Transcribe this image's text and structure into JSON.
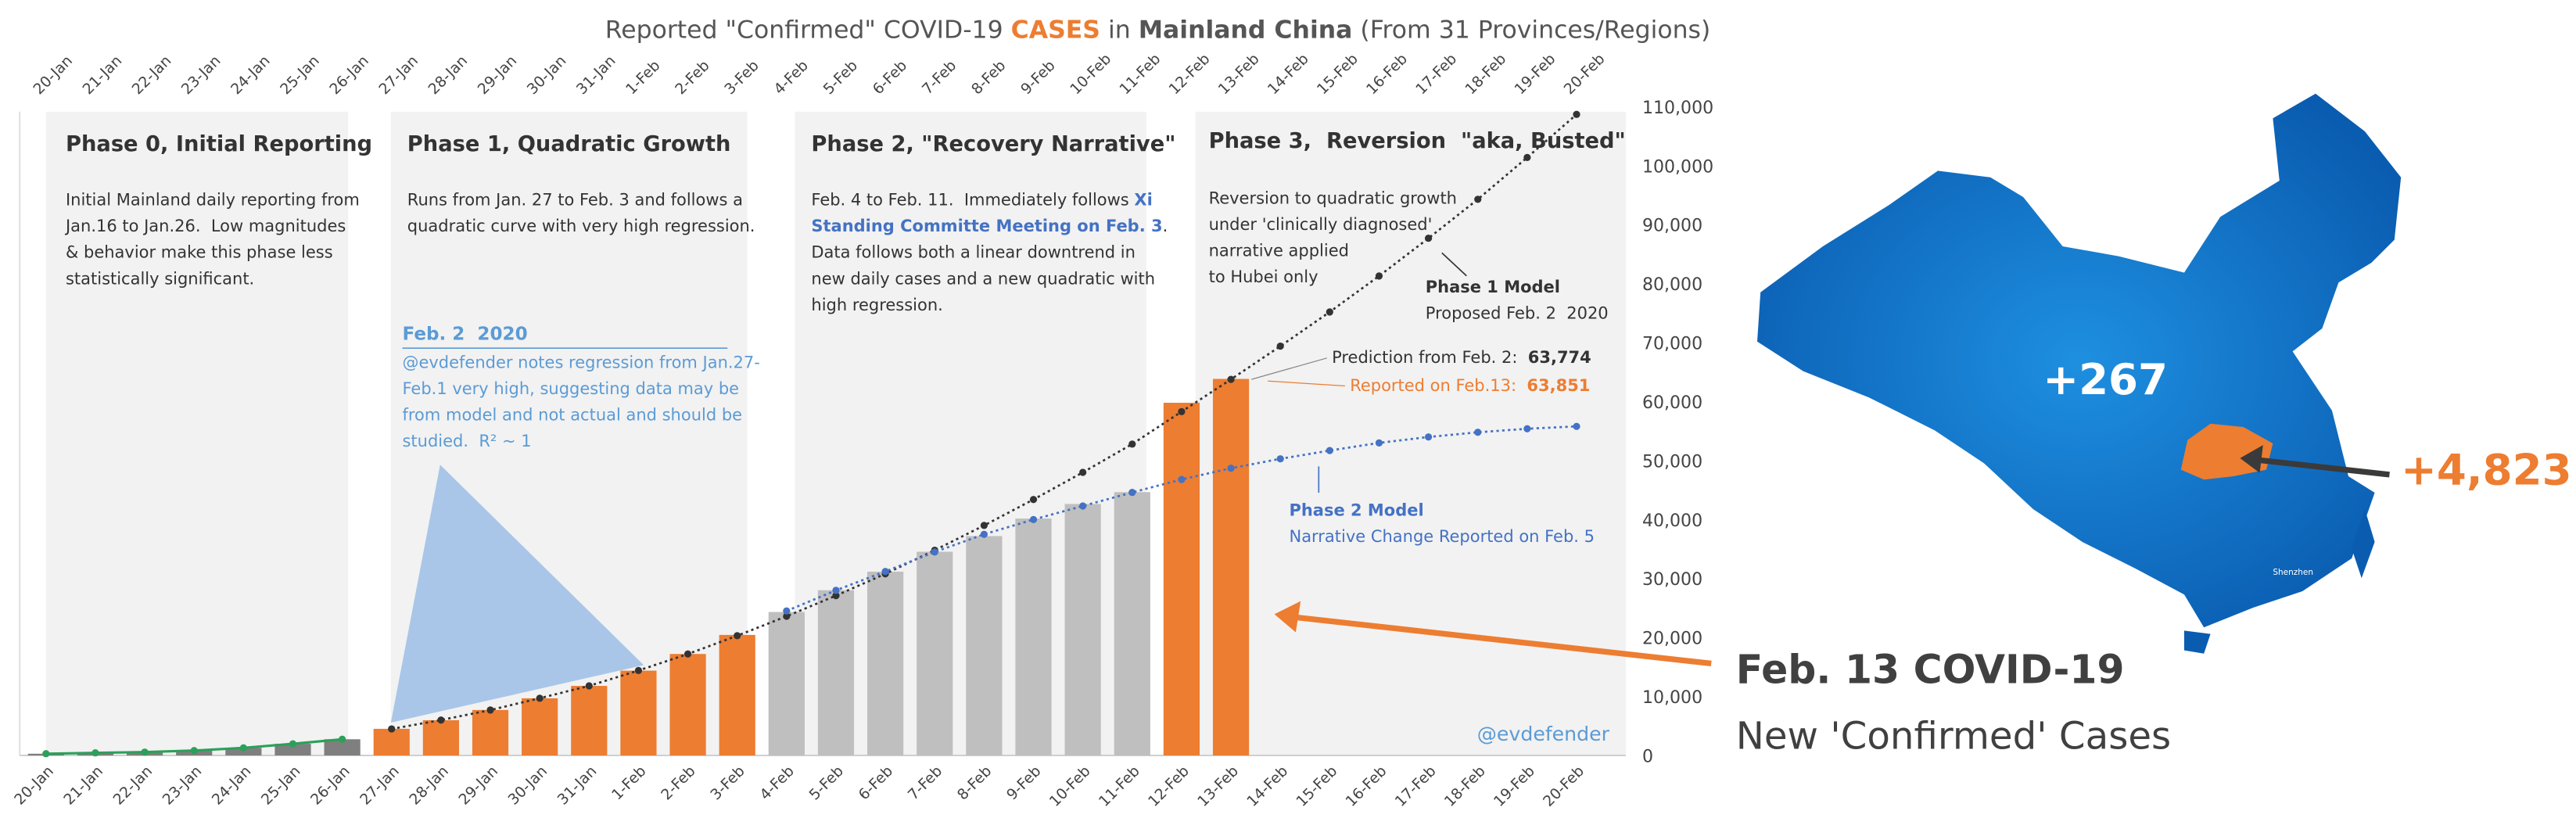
{
  "chart_data": {
    "type": "bar",
    "title": [
      "Reported \"Confirmed\" COVID-19 ",
      "CASES",
      " in ",
      "Mainland China",
      " (From 31 Provinces/Regions)"
    ],
    "categories": [
      "20-Jan",
      "21-Jan",
      "22-Jan",
      "23-Jan",
      "24-Jan",
      "25-Jan",
      "26-Jan",
      "27-Jan",
      "28-Jan",
      "29-Jan",
      "30-Jan",
      "31-Jan",
      "1-Feb",
      "2-Feb",
      "3-Feb",
      "4-Feb",
      "5-Feb",
      "6-Feb",
      "7-Feb",
      "8-Feb",
      "9-Feb",
      "10-Feb",
      "11-Feb",
      "12-Feb",
      "13-Feb",
      "14-Feb",
      "15-Feb",
      "16-Feb",
      "17-Feb",
      "18-Feb",
      "19-Feb",
      "20-Feb"
    ],
    "values": [
      291,
      440,
      571,
      830,
      1287,
      1975,
      2744,
      4515,
      5974,
      7711,
      9692,
      11791,
      14380,
      17205,
      20438,
      24324,
      28018,
      31161,
      34546,
      37198,
      40171,
      42638,
      44653,
      59804,
      63851,
      null,
      null,
      null,
      null,
      null,
      null,
      null
    ],
    "colors": [
      "#7f7f7f",
      "#7f7f7f",
      "#7f7f7f",
      "#7f7f7f",
      "#7f7f7f",
      "#7f7f7f",
      "#7f7f7f",
      "#ed7d31",
      "#ed7d31",
      "#ed7d31",
      "#ed7d31",
      "#ed7d31",
      "#ed7d31",
      "#ed7d31",
      "#ed7d31",
      "#bfbfbf",
      "#bfbfbf",
      "#bfbfbf",
      "#bfbfbf",
      "#bfbfbf",
      "#bfbfbf",
      "#bfbfbf",
      "#bfbfbf",
      "#ed7d31",
      "#ed7d31",
      null,
      null,
      null,
      null,
      null,
      null,
      null
    ],
    "lines": [
      {
        "color": "#2ca05a",
        "dotted": false,
        "values": [
          291,
          440,
          571,
          830,
          1287,
          1975,
          2744,
          null,
          null,
          null,
          null,
          null,
          null,
          null,
          null,
          null,
          null,
          null,
          null,
          null,
          null,
          null,
          null,
          null,
          null,
          null,
          null,
          null,
          null,
          null,
          null,
          null
        ]
      },
      {
        "color": "#333333",
        "dotted": true,
        "values": [
          null,
          null,
          null,
          null,
          null,
          null,
          null,
          4500,
          6000,
          7700,
          9700,
          11800,
          14400,
          17200,
          20300,
          23600,
          27100,
          30800,
          34800,
          39000,
          43400,
          48000,
          52800,
          58300,
          63774,
          69400,
          75200,
          81300,
          87700,
          94300,
          101400,
          108700
        ]
      },
      {
        "color": "#4472c4",
        "dotted": true,
        "values": [
          null,
          null,
          null,
          null,
          null,
          null,
          null,
          null,
          null,
          null,
          null,
          null,
          null,
          null,
          null,
          24500,
          28000,
          31200,
          34500,
          37500,
          40000,
          42300,
          44600,
          46800,
          48700,
          50300,
          51700,
          53000,
          54000,
          54800,
          55400,
          55800
        ]
      }
    ],
    "ylim": [
      0,
      110000
    ],
    "yticks": [
      0,
      {
        "value": 10000,
        "label": "10,000"
      },
      {
        "value": 20000,
        "label": "20,000"
      },
      {
        "value": 30000,
        "label": "30,000"
      },
      {
        "value": 40000,
        "label": "40,000"
      },
      {
        "value": 50000,
        "label": "50,000"
      },
      {
        "value": 60000,
        "label": "60,000"
      },
      {
        "value": 70000,
        "label": "70,000"
      },
      {
        "value": 80000,
        "label": "80,000"
      },
      {
        "value": 90000,
        "label": "90,000"
      },
      {
        "value": 100000,
        "label": "100,000"
      },
      {
        "value": 110000,
        "label": "110,000"
      }
    ],
    "annotations": {
      "phase0": {
        "title": "Phase 0, Initial Reporting",
        "body": [
          "Initial Mainland daily reporting from",
          "Jan.16 to Jan.26.  Low magnitudes",
          "& behavior make this phase less",
          "statistically significant."
        ]
      },
      "phase1": {
        "title": "Phase 1, Quadratic Growth",
        "body": [
          "Runs from Jan. 27 to Feb. 3 and follows a",
          "quadratic curve with very high regression."
        ]
      },
      "note": {
        "title": "Feb. 2  2020",
        "body": [
          "@evdefender notes regression from Jan.27-",
          "Feb.1 very high, suggesting data may be",
          "from model and not actual and should be",
          "studied.  R² ~ 1"
        ]
      },
      "phase2": {
        "title": "Phase 2, \"Recovery Narrative\"",
        "body": [
          [
            "Feb. 4 to Feb. 11.  Immediately follows ",
            "Xi"
          ],
          [
            "Standing Committe Meeting on Feb. 3",
            "."
          ],
          [
            "Data follows both a linear downtrend in"
          ],
          [
            "new daily cases and a new quadratic with"
          ],
          [
            "high regression."
          ]
        ]
      },
      "phase3": {
        "title": "Phase 3,  Reversion  \"aka, Busted\"",
        "body": [
          "Reversion to quadratic growth",
          "under 'clinically diagnosed'",
          "narrative applied",
          "to Hubei only"
        ]
      },
      "model1": [
        "Phase 1 Model",
        "Proposed Feb. 2  2020"
      ],
      "prediction": [
        "Prediction from Feb. 2:  ",
        "63,774"
      ],
      "reported": [
        "Reported on Feb.13:  ",
        "63,851"
      ],
      "model2": [
        "Phase 2 Model",
        "Narrative Change Reported on Feb. 5"
      ],
      "credit": "@evdefender"
    },
    "map": {
      "rest": "+267",
      "hubei": "+4,823",
      "city": "Shenzhen",
      "headline": "Feb. 13 COVID-19",
      "subtitle": "New 'Confirmed' Cases"
    }
  }
}
